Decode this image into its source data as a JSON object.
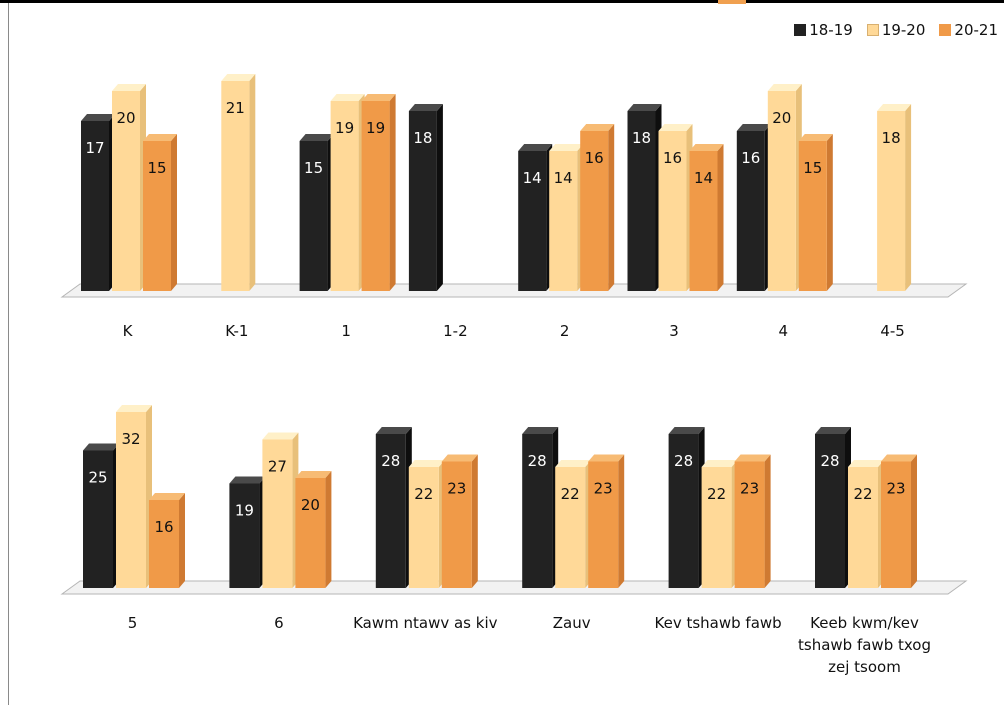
{
  "legend": [
    "18-19",
    "19-20",
    "20-21"
  ],
  "colors": {
    "series_front": [
      "#222222",
      "#ffd998",
      "#f09a48"
    ],
    "series_top": [
      "#4a4a4a",
      "#fff0c8",
      "#f7bb74"
    ],
    "series_side": [
      "#0e0e0e",
      "#e8c07a",
      "#cf7a32"
    ],
    "series_text": [
      "#ffffff",
      "#111111",
      "#111111"
    ]
  },
  "chart_data": [
    {
      "type": "bar",
      "categories": [
        "K",
        "K-1",
        "1",
        "1-2",
        "2",
        "3",
        "4",
        "4-5"
      ],
      "series": [
        {
          "name": "18-19",
          "values": [
            17,
            null,
            15,
            18,
            14,
            18,
            16,
            null
          ]
        },
        {
          "name": "19-20",
          "values": [
            20,
            21,
            19,
            null,
            14,
            16,
            20,
            18
          ]
        },
        {
          "name": "20-21",
          "values": [
            15,
            null,
            19,
            null,
            16,
            14,
            15,
            null
          ]
        }
      ],
      "legend_position": "top-right"
    },
    {
      "type": "bar",
      "categories": [
        "5",
        "6",
        "Kawm ntawv as kiv",
        "Zauv",
        "Kev tshawb fawb",
        "Keeb kwm/kev tshawb fawb txog zej tsoom"
      ],
      "series": [
        {
          "name": "18-19",
          "values": [
            25,
            19,
            28,
            28,
            28,
            28
          ]
        },
        {
          "name": "19-20",
          "values": [
            32,
            27,
            22,
            22,
            22,
            22
          ]
        },
        {
          "name": "20-21",
          "values": [
            16,
            20,
            23,
            23,
            23,
            23
          ]
        }
      ]
    }
  ]
}
